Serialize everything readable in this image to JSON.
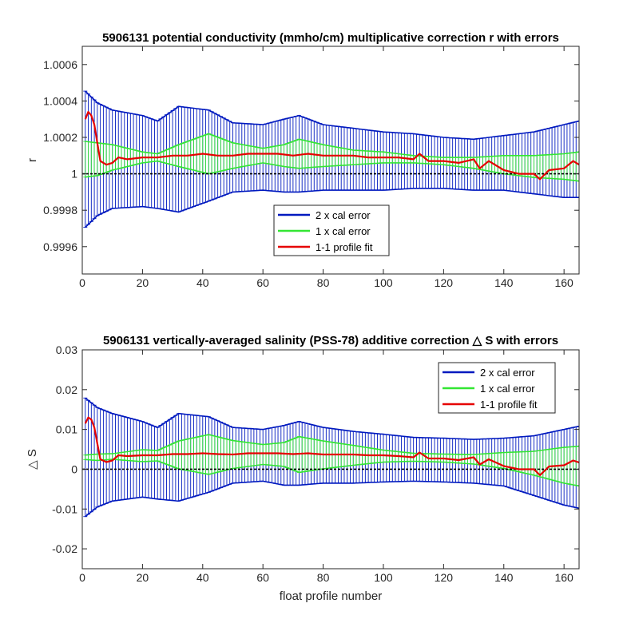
{
  "chart_data": [
    {
      "type": "line",
      "title": "5906131 potential conductivity (mmho/cm) multiplicative correction r with errors",
      "xlabel": "",
      "ylabel": "r",
      "xlim": [
        0,
        165
      ],
      "ylim": [
        0.99945,
        1.0007
      ],
      "x_ticks": [
        0,
        20,
        40,
        60,
        80,
        100,
        120,
        140,
        160
      ],
      "y_ticks": [
        0.9996,
        0.9998,
        1,
        1.0002,
        1.0004,
        1.0006
      ],
      "y_tick_labels": [
        "0.9996",
        "0.9998",
        "1",
        "1.0002",
        "1.0004",
        "1.0006"
      ],
      "reference_line": 1,
      "grid": false,
      "legend_position": "center-bottom",
      "series": [
        {
          "name": "2 x cal error",
          "color": "#0019bf",
          "kind": "errorband",
          "x": [
            0,
            5,
            10,
            20,
            25,
            32,
            42,
            50,
            60,
            67,
            72,
            80,
            90,
            100,
            110,
            120,
            130,
            140,
            150,
            160,
            165
          ],
          "half": [
            0.00039,
            0.00031,
            0.00027,
            0.00025,
            0.00024,
            0.00029,
            0.00025,
            0.00019,
            0.00018,
            0.0002,
            0.00021,
            0.00018,
            0.00017,
            0.00016,
            0.00015,
            0.00014,
            0.00014,
            0.00015,
            0.00017,
            0.0002,
            0.00021
          ],
          "mid": [
            1.00008,
            1.00008,
            1.00008,
            1.00007,
            1.00005,
            1.00008,
            1.0001,
            1.00009,
            1.00009,
            1.0001,
            1.00011,
            1.00009,
            1.00008,
            1.00007,
            1.00007,
            1.00006,
            1.00005,
            1.00006,
            1.00006,
            1.00007,
            1.00008
          ]
        },
        {
          "name": "1 x cal error",
          "color": "#33e633",
          "kind": "errorband",
          "x": [
            0,
            5,
            10,
            20,
            25,
            32,
            42,
            50,
            60,
            67,
            72,
            80,
            90,
            100,
            110,
            120,
            130,
            140,
            150,
            160,
            165
          ],
          "half": [
            0.0001,
            9e-05,
            7e-05,
            3e-05,
            2e-05,
            6e-05,
            0.00011,
            7e-05,
            4e-05,
            6e-05,
            8e-05,
            6e-05,
            4e-05,
            3e-05,
            2e-05,
            2e-05,
            3e-05,
            5e-05,
            6e-05,
            7e-05,
            8e-05
          ],
          "mid": [
            1.00008,
            1.00008,
            1.00009,
            1.00009,
            1.00009,
            1.0001,
            1.00011,
            1.0001,
            1.0001,
            1.0001,
            1.00011,
            1.0001,
            1.00009,
            1.00009,
            1.00008,
            1.00007,
            1.00006,
            1.00005,
            1.00004,
            1.00004,
            1.00004
          ]
        },
        {
          "name": "1-1 profile fit",
          "color": "#e60000",
          "kind": "line",
          "x": [
            1,
            2,
            3,
            4,
            5,
            6,
            8,
            10,
            12,
            15,
            20,
            25,
            30,
            35,
            40,
            45,
            50,
            55,
            60,
            65,
            70,
            75,
            80,
            85,
            90,
            95,
            100,
            105,
            110,
            112,
            115,
            120,
            125,
            130,
            132,
            135,
            140,
            145,
            150,
            152,
            155,
            160,
            163,
            165
          ],
          "y": [
            1.0003,
            1.00034,
            1.00032,
            1.00027,
            1.00017,
            1.00007,
            1.00005,
            1.00006,
            1.00009,
            1.00008,
            1.00009,
            1.00009,
            1.0001,
            1.0001,
            1.00011,
            1.0001,
            1.0001,
            1.00011,
            1.00011,
            1.00011,
            1.0001,
            1.00011,
            1.0001,
            1.0001,
            1.0001,
            1.00009,
            1.00009,
            1.00009,
            1.00008,
            1.00011,
            1.00007,
            1.00007,
            1.00006,
            1.00008,
            1.00003,
            1.00007,
            1.00002,
            1.0,
            1.0,
            0.99997,
            1.00002,
            1.00003,
            1.00007,
            1.00005
          ]
        }
      ]
    },
    {
      "type": "line",
      "title": "5906131 vertically-averaged salinity (PSS-78) additive correction △ S with errors",
      "xlabel": "float profile number",
      "ylabel": "△ S",
      "xlim": [
        0,
        165
      ],
      "ylim": [
        -0.025,
        0.03
      ],
      "x_ticks": [
        0,
        20,
        40,
        60,
        80,
        100,
        120,
        140,
        160
      ],
      "y_ticks": [
        -0.02,
        -0.01,
        0,
        0.01,
        0.02,
        0.03
      ],
      "y_tick_labels": [
        "-0.02",
        "-0.01",
        "0",
        "0.01",
        "0.02",
        "0.03"
      ],
      "reference_line": 0,
      "grid": false,
      "legend_position": "top-right",
      "series": [
        {
          "name": "2 x cal error",
          "color": "#0019bf",
          "kind": "errorband",
          "x": [
            0,
            5,
            10,
            20,
            25,
            32,
            42,
            50,
            60,
            67,
            72,
            80,
            90,
            100,
            110,
            120,
            130,
            140,
            150,
            160,
            165
          ],
          "half": [
            0.0155,
            0.0125,
            0.011,
            0.0095,
            0.009,
            0.011,
            0.0095,
            0.007,
            0.0065,
            0.0075,
            0.008,
            0.007,
            0.0065,
            0.006,
            0.0055,
            0.0055,
            0.0055,
            0.006,
            0.0075,
            0.0095,
            0.0103
          ],
          "mid": [
            0.003,
            0.003,
            0.003,
            0.0025,
            0.0015,
            0.003,
            0.0037,
            0.0035,
            0.0035,
            0.0035,
            0.004,
            0.0035,
            0.003,
            0.0028,
            0.0025,
            0.0023,
            0.002,
            0.0018,
            0.0009,
            0.0005,
            0.0005
          ]
        },
        {
          "name": "1 x cal error",
          "color": "#33e633",
          "kind": "errorband",
          "x": [
            0,
            5,
            10,
            20,
            25,
            32,
            42,
            50,
            60,
            67,
            72,
            80,
            90,
            100,
            110,
            120,
            130,
            140,
            150,
            160,
            165
          ],
          "half": [
            0.0005,
            0.0008,
            0.0007,
            0.0015,
            0.0013,
            0.0035,
            0.005,
            0.0035,
            0.0025,
            0.003,
            0.0045,
            0.0035,
            0.0025,
            0.0015,
            0.001,
            0.001,
            0.0012,
            0.002,
            0.003,
            0.0045,
            0.005
          ],
          "mid": [
            0.003,
            0.003,
            0.0032,
            0.0034,
            0.0034,
            0.0036,
            0.0037,
            0.0037,
            0.0037,
            0.0037,
            0.0037,
            0.0036,
            0.0035,
            0.0033,
            0.003,
            0.0028,
            0.0025,
            0.0022,
            0.0015,
            0.001,
            0.0008
          ]
        },
        {
          "name": "1-1 profile fit",
          "color": "#e60000",
          "kind": "line",
          "x": [
            1,
            2,
            3,
            4,
            5,
            6,
            8,
            10,
            12,
            15,
            20,
            25,
            30,
            35,
            40,
            45,
            50,
            55,
            60,
            65,
            70,
            75,
            80,
            85,
            90,
            95,
            100,
            105,
            110,
            112,
            115,
            120,
            125,
            130,
            132,
            135,
            140,
            145,
            150,
            152,
            155,
            160,
            163,
            165
          ],
          "y": [
            0.0115,
            0.013,
            0.0125,
            0.0105,
            0.0065,
            0.0025,
            0.0018,
            0.0022,
            0.0035,
            0.0033,
            0.0035,
            0.0035,
            0.0038,
            0.0038,
            0.004,
            0.0038,
            0.0037,
            0.004,
            0.004,
            0.004,
            0.0038,
            0.004,
            0.0037,
            0.0037,
            0.0037,
            0.0035,
            0.0035,
            0.0033,
            0.003,
            0.0042,
            0.0027,
            0.0027,
            0.0023,
            0.003,
            0.0012,
            0.0025,
            0.0008,
            0.0,
            0.0,
            -0.0015,
            0.0007,
            0.001,
            0.0022,
            0.0017
          ]
        }
      ]
    }
  ]
}
